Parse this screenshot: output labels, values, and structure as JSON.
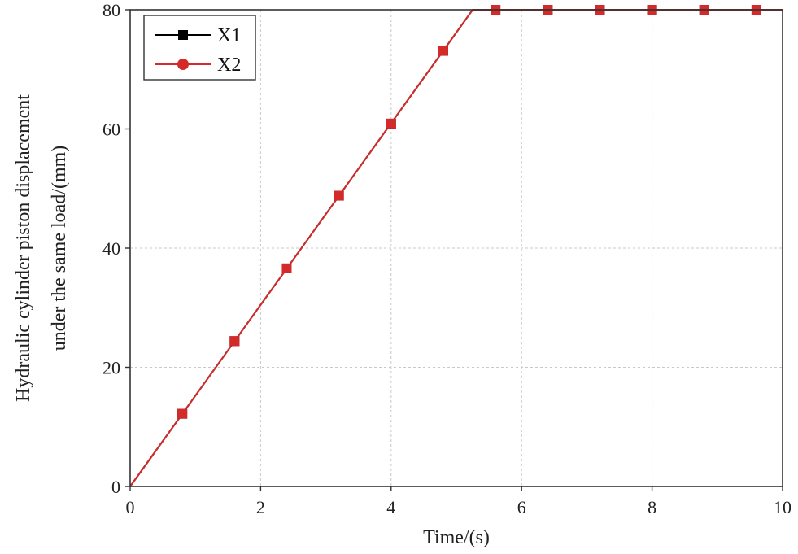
{
  "chart_data": {
    "type": "line",
    "xlabel": "Time/(s)",
    "ylabel_lines": [
      "Hydraulic cylinder piston displacement",
      "under the same load/(mm)"
    ],
    "xlim": [
      0,
      10
    ],
    "ylim": [
      0,
      80
    ],
    "xticks": [
      0,
      2,
      4,
      6,
      8,
      10
    ],
    "yticks": [
      0,
      20,
      40,
      60,
      80
    ],
    "grid": true,
    "legend_position": "top-left",
    "series": [
      {
        "name": "X1",
        "color": "#000000",
        "marker": "square",
        "line": [
          [
            0,
            0
          ],
          [
            5.25,
            80
          ],
          [
            10,
            80
          ]
        ],
        "x": [
          0,
          0.8,
          1.6,
          2.4,
          3.2,
          4.0,
          4.8,
          5.6,
          6.4,
          7.2,
          8.0,
          8.8,
          9.6
        ],
        "y": [
          0,
          12.2,
          24.4,
          36.6,
          48.8,
          60.9,
          73.1,
          80,
          80,
          80,
          80,
          80,
          80
        ]
      },
      {
        "name": "X2",
        "color": "#d42a2a",
        "marker": "circle",
        "line": [
          [
            0,
            0
          ],
          [
            5.25,
            80
          ],
          [
            10,
            80
          ]
        ],
        "x": [
          0,
          0.8,
          1.6,
          2.4,
          3.2,
          4.0,
          4.8,
          5.6,
          6.4,
          7.2,
          8.0,
          8.8,
          9.6
        ],
        "y": [
          0,
          12.2,
          24.4,
          36.6,
          48.8,
          60.9,
          73.1,
          80,
          80,
          80,
          80,
          80,
          80
        ]
      }
    ]
  }
}
